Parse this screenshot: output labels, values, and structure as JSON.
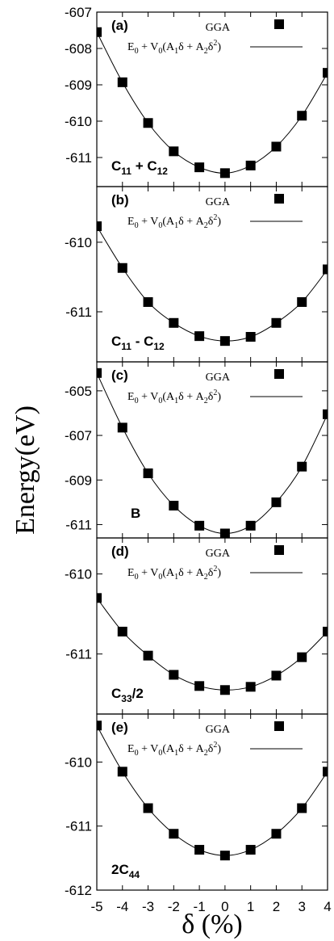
{
  "chart_data": {
    "type": "scatter",
    "ylabel": "Energy(eV)",
    "xlabel": "δ (%)",
    "x": [
      -5,
      -4,
      -3,
      -2,
      -1,
      0,
      1,
      2,
      3,
      4
    ],
    "xticks": [
      "-5",
      "-4",
      "-3",
      "-2",
      "-1",
      "0",
      "1",
      "2",
      "3",
      "4"
    ],
    "xlim": [
      -5,
      4
    ],
    "legend": {
      "marker_label": "GGA",
      "fit_label": "E0 + V0(A1δ + A2δ2)"
    },
    "panels": [
      {
        "tag": "(a)",
        "label_main": "C",
        "label_parts": [
          [
            "C",
            ""
          ],
          [
            "11",
            "sub"
          ],
          [
            " + C",
            ""
          ],
          [
            "12",
            "sub"
          ]
        ],
        "ylim": [
          -611.8,
          -607
        ],
        "yticks": [
          -607,
          -608,
          -609,
          -610,
          -611
        ],
        "values": [
          -607.55,
          -608.93,
          -610.05,
          -610.83,
          -611.27,
          -611.43,
          -611.22,
          -610.7,
          -609.85,
          -608.67
        ],
        "fit": {
          "a": 0.1,
          "b": 0.0,
          "c": -611.43
        }
      },
      {
        "tag": "(b)",
        "label_parts": [
          [
            "C",
            ""
          ],
          [
            "11",
            "sub"
          ],
          [
            " - C",
            ""
          ],
          [
            "12",
            "sub"
          ]
        ],
        "ylim": [
          -611.72,
          -609.2
        ],
        "yticks": [
          -610,
          -611
        ],
        "values": [
          -609.77,
          -610.37,
          -610.86,
          -611.16,
          -611.35,
          -611.42,
          -611.36,
          -611.16,
          -610.86,
          -610.39
        ],
        "fit": {
          "a": 0.06,
          "b": 0.0,
          "c": -611.42
        }
      },
      {
        "tag": "(c)",
        "label_parts": [
          [
            "B",
            ""
          ]
        ],
        "ylim": [
          -611.6,
          -603.7
        ],
        "yticks": [
          -605,
          -607,
          -609,
          -611
        ],
        "values": [
          -604.2,
          -606.65,
          -608.7,
          -610.15,
          -611.05,
          -611.4,
          -611.05,
          -610.0,
          -608.4,
          -606.05
        ],
        "fit": {
          "a": 0.22,
          "b": 0.0,
          "c": -611.4
        }
      },
      {
        "tag": "(d)",
        "label_parts": [
          [
            "C",
            ""
          ],
          [
            "33",
            "sub"
          ],
          [
            "/2",
            ""
          ]
        ],
        "ylim": [
          -611.75,
          -609.55
        ],
        "yticks": [
          -610,
          -611
        ],
        "values": [
          -610.3,
          -610.72,
          -611.02,
          -611.26,
          -611.4,
          -611.45,
          -611.41,
          -611.27,
          -611.04,
          -610.72
        ],
        "fit": {
          "a": 0.046,
          "b": 0.0,
          "c": -611.45
        }
      },
      {
        "tag": "(e)",
        "label_parts": [
          [
            "2C",
            ""
          ],
          [
            "44",
            "sub"
          ]
        ],
        "ylim": [
          -612.0,
          -609.25
        ],
        "yticks": [
          -610,
          -611,
          -612
        ],
        "values": [
          -609.43,
          -610.15,
          -610.72,
          -611.12,
          -611.37,
          -611.46,
          -611.37,
          -611.12,
          -610.72,
          -610.15
        ],
        "fit": {
          "a": 0.065,
          "b": 0.0,
          "c": -611.46
        }
      }
    ]
  }
}
